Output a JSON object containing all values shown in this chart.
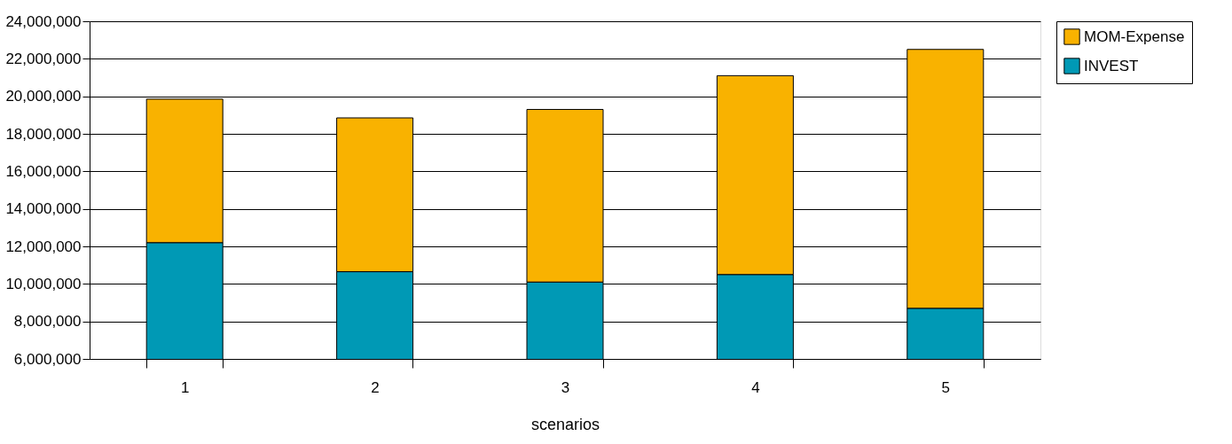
{
  "chart_data": {
    "type": "bar",
    "stacked": true,
    "xlabel": "scenarios",
    "categories": [
      "1",
      "2",
      "3",
      "4",
      "5"
    ],
    "series": [
      {
        "name": "INVEST",
        "color": "#0099b5",
        "values": [
          12200000,
          10650000,
          10100000,
          10500000,
          8700000
        ]
      },
      {
        "name": "MOM-Expense",
        "color": "#f9b200",
        "values": [
          7650000,
          8200000,
          9200000,
          10600000,
          13800000
        ]
      }
    ],
    "ylim": [
      6000000,
      24000000
    ],
    "yticks": [
      {
        "value": 6000000,
        "label": "6,000,000"
      },
      {
        "value": 8000000,
        "label": "8,000,000"
      },
      {
        "value": 10000000,
        "label": "10,000,000"
      },
      {
        "value": 12000000,
        "label": "12,000,000"
      },
      {
        "value": 14000000,
        "label": "14,000,000"
      },
      {
        "value": 16000000,
        "label": "16,000,000"
      },
      {
        "value": 18000000,
        "label": "18,000,000"
      },
      {
        "value": 20000000,
        "label": "20,000,000"
      },
      {
        "value": 22000000,
        "label": "22,000,000"
      },
      {
        "value": 24000000,
        "label": "24,000,000"
      }
    ],
    "grid": "y",
    "legend": "right"
  }
}
